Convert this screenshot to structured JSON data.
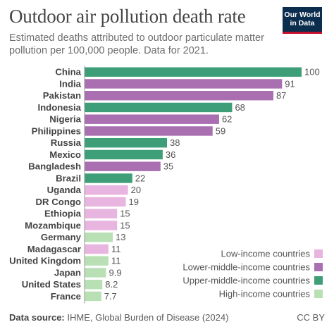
{
  "header": {
    "title": "Outdoor air pollution death rate",
    "subtitle": "Estimated deaths attributed to outdoor particulate matter pollution per 100,000 people. Data for 2021.",
    "logo_line1": "Our World",
    "logo_line2": "in Data"
  },
  "footer": {
    "source_label": "Data source:",
    "source_text": "IHME, Global Burden of Disease (2024)",
    "license": "CC BY"
  },
  "colors": {
    "Low-income countries": "#e8b4e0",
    "Lower-middle-income countries": "#a96fb0",
    "Upper-middle-income countries": "#3e9e78",
    "High-income countries": "#b8e0b4"
  },
  "chart_data": {
    "type": "bar",
    "orientation": "horizontal",
    "categories": [
      "China",
      "India",
      "Pakistan",
      "Indonesia",
      "Nigeria",
      "Philippines",
      "Russia",
      "Mexico",
      "Bangladesh",
      "Brazil",
      "Uganda",
      "DR Congo",
      "Ethiopia",
      "Mozambique",
      "Germany",
      "Madagascar",
      "United Kingdom",
      "Japan",
      "United States",
      "France"
    ],
    "values": [
      100,
      91,
      87,
      68,
      62,
      59,
      38,
      36,
      35,
      22,
      20,
      19,
      15,
      15,
      13,
      11,
      11,
      9.9,
      8.2,
      7.7
    ],
    "value_labels": [
      "100",
      "91",
      "87",
      "68",
      "62",
      "59",
      "38",
      "36",
      "35",
      "22",
      "20",
      "19",
      "15",
      "15",
      "13",
      "11",
      "11",
      "9.9",
      "8.2",
      "7.7"
    ],
    "groups": [
      "Upper-middle-income countries",
      "Lower-middle-income countries",
      "Lower-middle-income countries",
      "Upper-middle-income countries",
      "Lower-middle-income countries",
      "Lower-middle-income countries",
      "Upper-middle-income countries",
      "Upper-middle-income countries",
      "Lower-middle-income countries",
      "Upper-middle-income countries",
      "Low-income countries",
      "Low-income countries",
      "Low-income countries",
      "Low-income countries",
      "High-income countries",
      "Low-income countries",
      "High-income countries",
      "High-income countries",
      "High-income countries",
      "High-income countries"
    ],
    "legend": [
      "Low-income countries",
      "Lower-middle-income countries",
      "Upper-middle-income countries",
      "High-income countries"
    ],
    "legend_position": "bottom-right",
    "xlim": [
      0,
      100
    ],
    "grid": false,
    "title": "Outdoor air pollution death rate",
    "xlabel": "",
    "ylabel": ""
  }
}
